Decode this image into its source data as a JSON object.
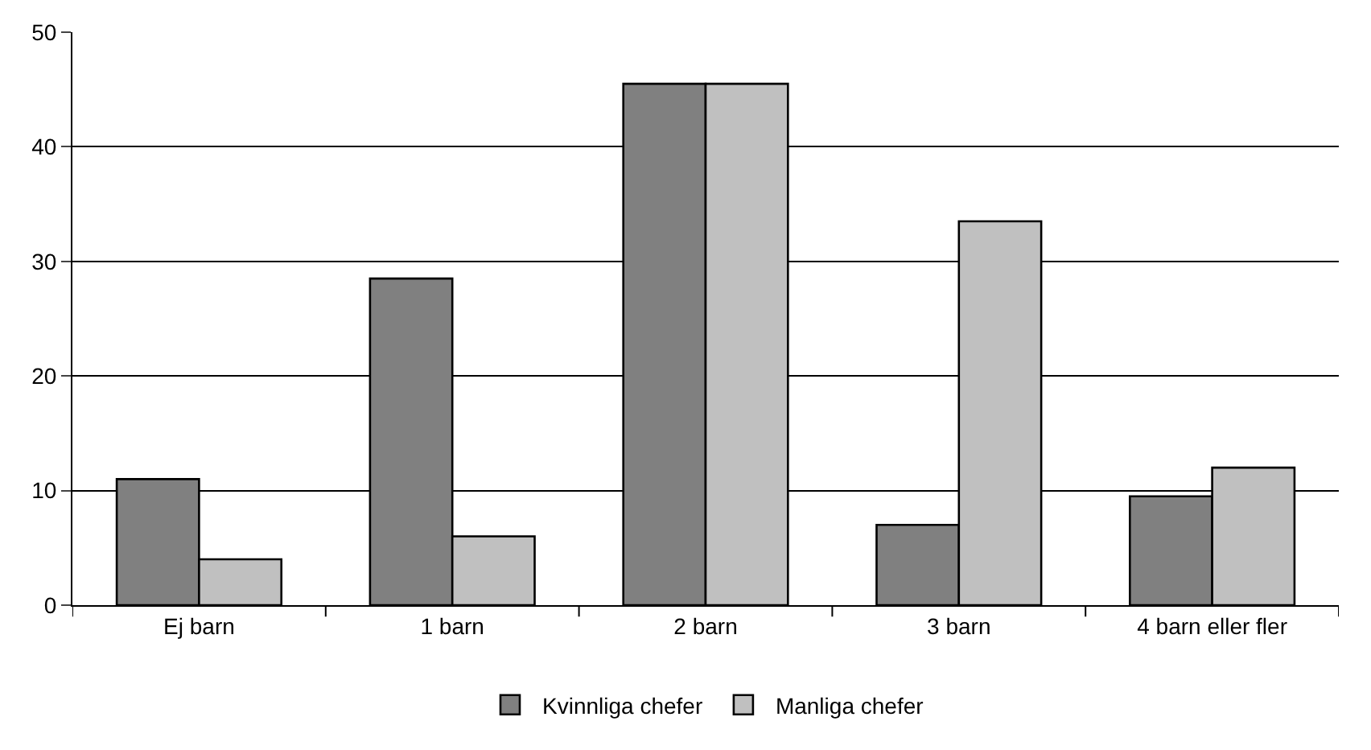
{
  "chart_data": {
    "type": "bar",
    "categories": [
      "Ej barn",
      "1 barn",
      "2 barn",
      "3 barn",
      "4 barn eller fler"
    ],
    "series": [
      {
        "name": "Kvinnliga chefer",
        "color": "#808080",
        "values": [
          11,
          28.5,
          45.5,
          7,
          9.5
        ]
      },
      {
        "name": "Manliga chefer",
        "color": "#c0c0c0",
        "values": [
          4,
          6,
          45.5,
          33.5,
          12
        ]
      }
    ],
    "ylim": [
      0,
      50
    ],
    "yticks": [
      0,
      10,
      20,
      30,
      40,
      50
    ],
    "grid": "y",
    "legend": "bottom"
  }
}
